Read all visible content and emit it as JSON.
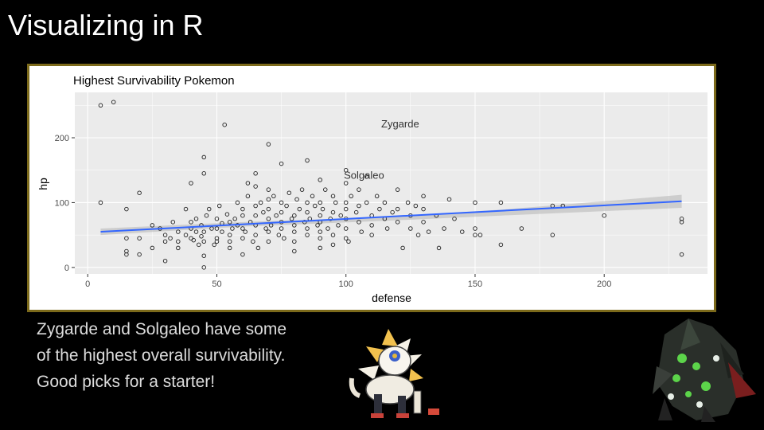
{
  "slide": {
    "title": "Visualizing in R",
    "caption": "Zygarde and Solgaleo have some of the highest overall survivability. Good picks for a starter!"
  },
  "colors": {
    "frame_border": "#7c6a1b",
    "panel_bg": "#ebebeb",
    "smooth_line": "#3366ff",
    "ribbon": "#b5b5b5"
  },
  "icons": [
    "solgaleo-image",
    "zygarde-image"
  ],
  "chart_data": {
    "type": "scatter",
    "title": "Highest Survivability Pokemon",
    "xlabel": "defense",
    "ylabel": "hp",
    "xlim": [
      -5,
      240
    ],
    "ylim": [
      -10,
      270
    ],
    "xticks": [
      0,
      50,
      100,
      150,
      200
    ],
    "yticks": [
      0,
      100,
      200
    ],
    "grid": true,
    "annotations": [
      {
        "text": "Zygarde",
        "x": 121,
        "y": 216
      },
      {
        "text": "Solgaleo",
        "x": 107,
        "y": 137
      }
    ],
    "smooth": {
      "method": "lm",
      "x": [
        5,
        230
      ],
      "y": [
        55,
        102
      ],
      "se_band": [
        [
          5,
          50,
          60
        ],
        [
          60,
          63,
          70
        ],
        [
          110,
          71,
          77
        ],
        [
          160,
          80,
          89
        ],
        [
          230,
          92,
          112
        ]
      ]
    },
    "points": [
      [
        5,
        250
      ],
      [
        10,
        255
      ],
      [
        5,
        100
      ],
      [
        15,
        90
      ],
      [
        20,
        115
      ],
      [
        15,
        45
      ],
      [
        15,
        25
      ],
      [
        15,
        20
      ],
      [
        20,
        20
      ],
      [
        20,
        45
      ],
      [
        25,
        30
      ],
      [
        25,
        65
      ],
      [
        28,
        60
      ],
      [
        30,
        40
      ],
      [
        30,
        50
      ],
      [
        30,
        10
      ],
      [
        32,
        45
      ],
      [
        33,
        70
      ],
      [
        35,
        55
      ],
      [
        35,
        40
      ],
      [
        35,
        30
      ],
      [
        38,
        50
      ],
      [
        38,
        90
      ],
      [
        40,
        45
      ],
      [
        40,
        60
      ],
      [
        40,
        70
      ],
      [
        40,
        130
      ],
      [
        41,
        42
      ],
      [
        42,
        55
      ],
      [
        42,
        75
      ],
      [
        43,
        35
      ],
      [
        44,
        65
      ],
      [
        44,
        48
      ],
      [
        45,
        170
      ],
      [
        45,
        145
      ],
      [
        45,
        40
      ],
      [
        45,
        55
      ],
      [
        45,
        0
      ],
      [
        45,
        18
      ],
      [
        46,
        80
      ],
      [
        47,
        90
      ],
      [
        48,
        60
      ],
      [
        49,
        35
      ],
      [
        50,
        75
      ],
      [
        50,
        60
      ],
      [
        50,
        45
      ],
      [
        50,
        40
      ],
      [
        51,
        95
      ],
      [
        52,
        55
      ],
      [
        52,
        68
      ],
      [
        53,
        220
      ],
      [
        54,
        82
      ],
      [
        55,
        70
      ],
      [
        55,
        40
      ],
      [
        55,
        50
      ],
      [
        55,
        30
      ],
      [
        56,
        60
      ],
      [
        57,
        75
      ],
      [
        58,
        65
      ],
      [
        58,
        100
      ],
      [
        60,
        90
      ],
      [
        60,
        80
      ],
      [
        60,
        60
      ],
      [
        60,
        45
      ],
      [
        60,
        20
      ],
      [
        61,
        55
      ],
      [
        62,
        130
      ],
      [
        62,
        110
      ],
      [
        63,
        70
      ],
      [
        64,
        40
      ],
      [
        65,
        145
      ],
      [
        65,
        125
      ],
      [
        65,
        95
      ],
      [
        65,
        80
      ],
      [
        65,
        65
      ],
      [
        65,
        50
      ],
      [
        66,
        30
      ],
      [
        67,
        100
      ],
      [
        68,
        85
      ],
      [
        69,
        60
      ],
      [
        70,
        190
      ],
      [
        70,
        120
      ],
      [
        70,
        105
      ],
      [
        70,
        90
      ],
      [
        70,
        75
      ],
      [
        70,
        55
      ],
      [
        70,
        40
      ],
      [
        71,
        65
      ],
      [
        72,
        110
      ],
      [
        73,
        80
      ],
      [
        74,
        50
      ],
      [
        75,
        160
      ],
      [
        75,
        100
      ],
      [
        75,
        85
      ],
      [
        75,
        70
      ],
      [
        75,
        60
      ],
      [
        76,
        45
      ],
      [
        77,
        95
      ],
      [
        78,
        115
      ],
      [
        79,
        75
      ],
      [
        80,
        80
      ],
      [
        80,
        65
      ],
      [
        80,
        55
      ],
      [
        80,
        40
      ],
      [
        80,
        25
      ],
      [
        81,
        105
      ],
      [
        82,
        90
      ],
      [
        83,
        120
      ],
      [
        84,
        70
      ],
      [
        85,
        165
      ],
      [
        85,
        100
      ],
      [
        85,
        85
      ],
      [
        85,
        60
      ],
      [
        85,
        50
      ],
      [
        86,
        75
      ],
      [
        87,
        110
      ],
      [
        88,
        95
      ],
      [
        89,
        65
      ],
      [
        90,
        135
      ],
      [
        90,
        100
      ],
      [
        90,
        80
      ],
      [
        90,
        70
      ],
      [
        90,
        55
      ],
      [
        90,
        45
      ],
      [
        90,
        30
      ],
      [
        91,
        90
      ],
      [
        92,
        120
      ],
      [
        93,
        60
      ],
      [
        94,
        75
      ],
      [
        95,
        110
      ],
      [
        95,
        85
      ],
      [
        95,
        50
      ],
      [
        95,
        35
      ],
      [
        96,
        100
      ],
      [
        97,
        65
      ],
      [
        98,
        80
      ],
      [
        100,
        150
      ],
      [
        100,
        130
      ],
      [
        100,
        100
      ],
      [
        100,
        90
      ],
      [
        100,
        75
      ],
      [
        100,
        60
      ],
      [
        100,
        45
      ],
      [
        101,
        40
      ],
      [
        102,
        110
      ],
      [
        104,
        85
      ],
      [
        105,
        120
      ],
      [
        105,
        95
      ],
      [
        105,
        70
      ],
      [
        106,
        55
      ],
      [
        108,
        140
      ],
      [
        108,
        100
      ],
      [
        110,
        80
      ],
      [
        110,
        65
      ],
      [
        110,
        50
      ],
      [
        112,
        110
      ],
      [
        113,
        90
      ],
      [
        115,
        75
      ],
      [
        115,
        100
      ],
      [
        116,
        60
      ],
      [
        118,
        85
      ],
      [
        120,
        120
      ],
      [
        120,
        90
      ],
      [
        120,
        70
      ],
      [
        122,
        30
      ],
      [
        124,
        100
      ],
      [
        125,
        80
      ],
      [
        125,
        60
      ],
      [
        127,
        95
      ],
      [
        128,
        50
      ],
      [
        130,
        110
      ],
      [
        130,
        90
      ],
      [
        130,
        70
      ],
      [
        132,
        55
      ],
      [
        135,
        80
      ],
      [
        136,
        30
      ],
      [
        138,
        60
      ],
      [
        140,
        105
      ],
      [
        142,
        75
      ],
      [
        145,
        55
      ],
      [
        150,
        100
      ],
      [
        150,
        60
      ],
      [
        150,
        50
      ],
      [
        152,
        50
      ],
      [
        160,
        100
      ],
      [
        160,
        35
      ],
      [
        168,
        60
      ],
      [
        180,
        95
      ],
      [
        180,
        50
      ],
      [
        184,
        95
      ],
      [
        200,
        80
      ],
      [
        230,
        75
      ],
      [
        230,
        70
      ],
      [
        230,
        20
      ]
    ]
  }
}
